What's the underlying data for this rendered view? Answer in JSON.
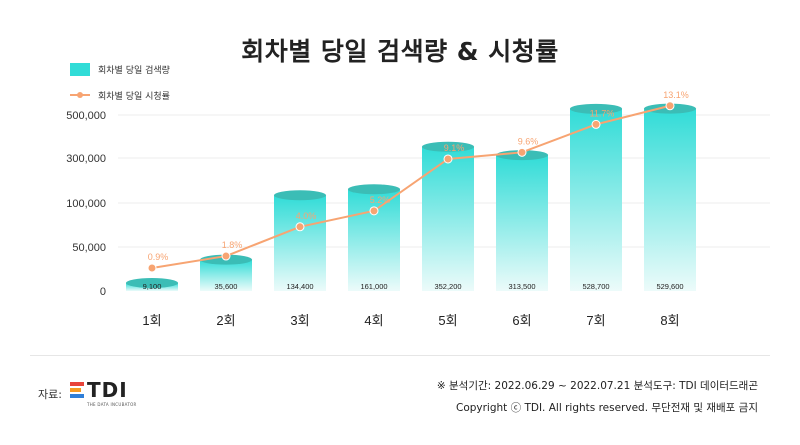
{
  "chart_data": {
    "type": "bar+line",
    "title": "회차별 당일 검색량 & 시청률",
    "categories": [
      "1회",
      "2회",
      "3회",
      "4회",
      "5회",
      "6회",
      "7회",
      "8회"
    ],
    "series": [
      {
        "name": "회차별 당일 검색량",
        "type": "bar",
        "color": "#31dcd7",
        "values": [
          9100,
          35600,
          134400,
          161000,
          352200,
          313500,
          528700,
          529600
        ],
        "labels": [
          "9,100",
          "35,600",
          "134,400",
          "161,000",
          "352,200",
          "313,500",
          "528,700",
          "529,600"
        ]
      },
      {
        "name": "회차별 당일 시청률",
        "type": "line",
        "color": "#f7a472",
        "values": [
          0.9,
          1.8,
          4.0,
          5.2,
          9.1,
          9.6,
          11.7,
          13.1
        ],
        "labels": [
          "0.9%",
          "1.8%",
          "4.0%",
          "5.2%",
          "9.1%",
          "9.6%",
          "11.7%",
          "13.1%"
        ]
      }
    ],
    "y_ticks": [
      "0",
      "50,000",
      "100,000",
      "300,000",
      "500,000"
    ],
    "y_tick_values": [
      0,
      50000,
      100000,
      300000,
      500000
    ],
    "y_scale": "broken (0–100,000 linear, then compressed above)",
    "grid": true,
    "legend_position": "top-left"
  },
  "source": {
    "label": "자료:",
    "logo_text": "TDI",
    "logo_tagline": "THE DATA INCUBATOR"
  },
  "footer": {
    "line1": "※ 분석기간: 2022.06.29 ~ 2022.07.21   분석도구: TDI 데이터드래곤",
    "line2": "Copyright ⓒ TDI. All rights reserved. 무단전재 및 재배포 금지"
  },
  "colors": {
    "bar": "#31dcd7",
    "bar_top": "#3bbdb6",
    "line": "#f7a472",
    "logo_red": "#e8433a",
    "logo_orange": "#f59a23",
    "logo_blue": "#2f7fd8"
  }
}
